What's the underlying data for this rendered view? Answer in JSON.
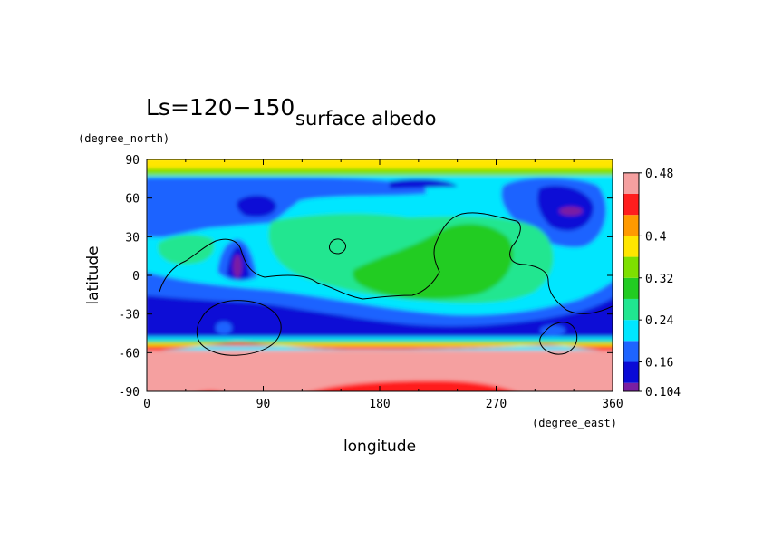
{
  "chart_data": {
    "type": "heatmap",
    "title_main": "Ls=120−150",
    "title_sub": "surface albedo",
    "xlabel": "longitude",
    "ylabel": "latitude",
    "x_unit": "(degree_east)",
    "y_unit": "(degree_north)",
    "xlim": [
      0,
      360
    ],
    "ylim": [
      -90,
      90
    ],
    "x_ticks": [
      "0",
      "90",
      "180",
      "270",
      "360"
    ],
    "y_ticks": [
      "90",
      "60",
      "30",
      "0",
      "-30",
      "-60",
      "-90"
    ],
    "colorbar": {
      "tick_labels": [
        "0.48",
        "0.4",
        "0.32",
        "0.24",
        "0.16",
        "0.104"
      ],
      "levels": [
        0.104,
        0.12,
        0.16,
        0.2,
        0.24,
        0.28,
        0.32,
        0.36,
        0.4,
        0.44,
        0.48
      ],
      "colors": [
        "#7b1fa2",
        "#0a0ad6",
        "#1e64ff",
        "#00e6ff",
        "#20e690",
        "#22cc22",
        "#7ee000",
        "#ffe600",
        "#ff9a00",
        "#ff1e1e",
        "#f5a0a0"
      ]
    },
    "grid": false
  }
}
